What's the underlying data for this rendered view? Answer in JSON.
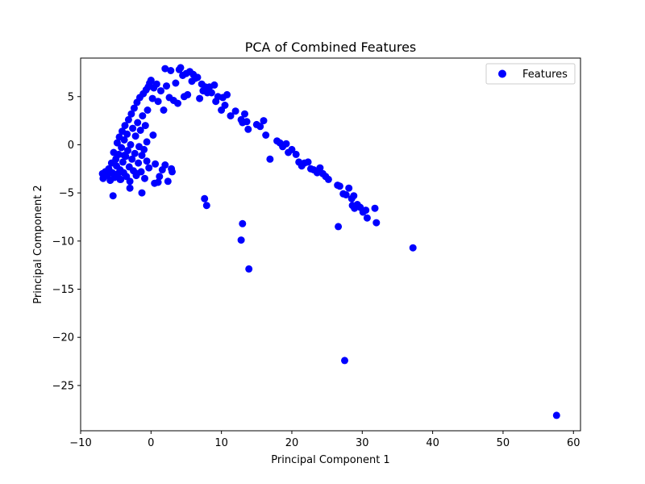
{
  "chart_data": {
    "type": "scatter",
    "title": "PCA of Combined Features",
    "xlabel": "Principal Component 1",
    "ylabel": "Principal Component 2",
    "xlim": [
      -10,
      61
    ],
    "ylim": [
      -29.7,
      9.0
    ],
    "xticks": [
      -10,
      0,
      10,
      20,
      30,
      40,
      50,
      60
    ],
    "yticks": [
      5,
      0,
      -5,
      -10,
      -15,
      -20,
      -25
    ],
    "xtick_labels": [
      "−10",
      "0",
      "10",
      "20",
      "30",
      "40",
      "50",
      "60"
    ],
    "ytick_labels": [
      "5",
      "0",
      "−5",
      "−10",
      "−15",
      "−20",
      "−25"
    ],
    "grid": false,
    "legend_position": "top-right",
    "marker_color": "#0000ff",
    "series": [
      {
        "name": "Features",
        "points": [
          [
            -6.8,
            -3.5
          ],
          [
            -6.5,
            -2.8
          ],
          [
            -6.2,
            -3.2
          ],
          [
            -6.0,
            -2.5
          ],
          [
            -5.8,
            -3.7
          ],
          [
            -5.6,
            -1.9
          ],
          [
            -5.5,
            -2.9
          ],
          [
            -5.3,
            -0.8
          ],
          [
            -5.2,
            -3.4
          ],
          [
            -5.0,
            -1.5
          ],
          [
            -4.9,
            -2.2
          ],
          [
            -4.8,
            0.2
          ],
          [
            -4.7,
            -3.0
          ],
          [
            -4.6,
            -1.0
          ],
          [
            -4.5,
            0.8
          ],
          [
            -4.4,
            -2.6
          ],
          [
            -4.3,
            -3.6
          ],
          [
            -4.2,
            -0.3
          ],
          [
            -4.1,
            1.4
          ],
          [
            -4.0,
            -1.8
          ],
          [
            -3.9,
            -2.9
          ],
          [
            -3.8,
            0.5
          ],
          [
            -3.7,
            2.0
          ],
          [
            -3.6,
            -1.2
          ],
          [
            -3.5,
            -3.3
          ],
          [
            -3.4,
            1.1
          ],
          [
            -3.3,
            -0.6
          ],
          [
            -3.2,
            2.6
          ],
          [
            -3.1,
            -2.3
          ],
          [
            -3.0,
            -3.8
          ],
          [
            -2.9,
            0.0
          ],
          [
            -2.8,
            3.2
          ],
          [
            -2.7,
            -1.5
          ],
          [
            -2.6,
            1.7
          ],
          [
            -2.5,
            -2.7
          ],
          [
            -2.4,
            3.8
          ],
          [
            -2.3,
            -0.9
          ],
          [
            -2.2,
            0.9
          ],
          [
            -2.1,
            -3.2
          ],
          [
            -2.0,
            4.4
          ],
          [
            -1.9,
            2.3
          ],
          [
            -1.8,
            -1.9
          ],
          [
            -1.7,
            -0.2
          ],
          [
            -1.6,
            4.9
          ],
          [
            -1.5,
            1.5
          ],
          [
            -1.4,
            -2.8
          ],
          [
            -1.3,
            -1.1
          ],
          [
            -1.2,
            3.0
          ],
          [
            -1.1,
            5.3
          ],
          [
            -1.0,
            -0.5
          ],
          [
            -0.9,
            -3.5
          ],
          [
            -0.8,
            2.0
          ],
          [
            -0.7,
            5.7
          ],
          [
            -0.6,
            -1.7
          ],
          [
            -0.5,
            3.6
          ],
          [
            -0.4,
            6.0
          ],
          [
            -0.3,
            -2.4
          ],
          [
            -0.2,
            6.4
          ],
          [
            0.0,
            6.7
          ],
          [
            0.2,
            4.8
          ],
          [
            0.3,
            1.0
          ],
          [
            0.4,
            5.9
          ],
          [
            0.6,
            -2.0
          ],
          [
            0.8,
            6.3
          ],
          [
            1.0,
            4.5
          ],
          [
            1.2,
            -3.3
          ],
          [
            1.4,
            5.6
          ],
          [
            1.6,
            -2.6
          ],
          [
            1.8,
            3.6
          ],
          [
            2.0,
            7.9
          ],
          [
            2.2,
            6.1
          ],
          [
            2.4,
            -3.8
          ],
          [
            2.6,
            4.9
          ],
          [
            2.8,
            7.7
          ],
          [
            3.0,
            -2.8
          ],
          [
            3.2,
            4.6
          ],
          [
            3.5,
            6.4
          ],
          [
            3.8,
            4.3
          ],
          [
            4.0,
            7.8
          ],
          [
            4.2,
            8.0
          ],
          [
            4.5,
            7.2
          ],
          [
            4.7,
            5.0
          ],
          [
            5.0,
            7.4
          ],
          [
            5.2,
            5.2
          ],
          [
            5.5,
            7.6
          ],
          [
            5.8,
            6.6
          ],
          [
            6.0,
            7.3
          ],
          [
            6.3,
            6.9
          ],
          [
            6.6,
            7.0
          ],
          [
            6.9,
            4.8
          ],
          [
            7.2,
            6.3
          ],
          [
            7.4,
            5.6
          ],
          [
            7.7,
            6.0
          ],
          [
            8.0,
            5.4
          ],
          [
            8.3,
            6.0
          ],
          [
            8.6,
            5.4
          ],
          [
            9.0,
            6.2
          ],
          [
            9.2,
            4.5
          ],
          [
            9.5,
            5.0
          ],
          [
            10.0,
            3.6
          ],
          [
            10.2,
            4.9
          ],
          [
            10.5,
            4.1
          ],
          [
            10.8,
            5.2
          ],
          [
            11.3,
            3.0
          ],
          [
            12.0,
            3.5
          ],
          [
            12.8,
            2.6
          ],
          [
            13.0,
            2.3
          ],
          [
            13.3,
            3.2
          ],
          [
            13.6,
            2.4
          ],
          [
            13.8,
            1.6
          ],
          [
            15.0,
            2.1
          ],
          [
            15.5,
            1.9
          ],
          [
            16.0,
            2.5
          ],
          [
            16.3,
            1.0
          ],
          [
            16.9,
            -1.5
          ],
          [
            17.9,
            0.4
          ],
          [
            18.3,
            0.2
          ],
          [
            18.7,
            -0.2
          ],
          [
            19.2,
            0.1
          ],
          [
            19.5,
            -0.8
          ],
          [
            20.0,
            -0.5
          ],
          [
            20.6,
            -1.0
          ],
          [
            21.0,
            -1.8
          ],
          [
            21.4,
            -2.2
          ],
          [
            21.8,
            -1.9
          ],
          [
            22.3,
            -1.8
          ],
          [
            22.7,
            -2.5
          ],
          [
            23.1,
            -2.6
          ],
          [
            23.6,
            -2.9
          ],
          [
            24.0,
            -2.4
          ],
          [
            24.4,
            -3.0
          ],
          [
            24.8,
            -3.3
          ],
          [
            25.2,
            -3.6
          ],
          [
            26.5,
            -4.2
          ],
          [
            26.8,
            -4.3
          ],
          [
            27.3,
            -5.1
          ],
          [
            27.7,
            -5.2
          ],
          [
            28.1,
            -4.5
          ],
          [
            28.5,
            -5.6
          ],
          [
            28.8,
            -5.3
          ],
          [
            28.6,
            -6.3
          ],
          [
            28.9,
            -6.6
          ],
          [
            29.3,
            -6.2
          ],
          [
            29.7,
            -6.5
          ],
          [
            30.1,
            -7.0
          ],
          [
            30.5,
            -6.8
          ],
          [
            30.7,
            -7.6
          ],
          [
            31.8,
            -6.6
          ],
          [
            32.0,
            -8.1
          ],
          [
            26.6,
            -8.5
          ],
          [
            37.2,
            -10.7
          ],
          [
            27.5,
            -22.4
          ],
          [
            57.6,
            -28.1
          ],
          [
            7.6,
            -5.6
          ],
          [
            7.9,
            -6.3
          ],
          [
            13.0,
            -8.2
          ],
          [
            12.8,
            -9.9
          ],
          [
            13.9,
            -12.9
          ],
          [
            -5.4,
            -5.3
          ],
          [
            -3.0,
            -4.5
          ],
          [
            -1.3,
            -5.0
          ],
          [
            0.5,
            -4.0
          ],
          [
            -6.9,
            -3.0
          ],
          [
            -4.4,
            -3.6
          ],
          [
            -2.0,
            -3.0
          ],
          [
            1.0,
            -3.9
          ],
          [
            2.0,
            -2.1
          ],
          [
            2.9,
            -2.5
          ],
          [
            -3.8,
            -1.1
          ],
          [
            -0.6,
            0.3
          ]
        ]
      }
    ]
  },
  "legend": {
    "entries": [
      {
        "label": "Features"
      }
    ]
  }
}
